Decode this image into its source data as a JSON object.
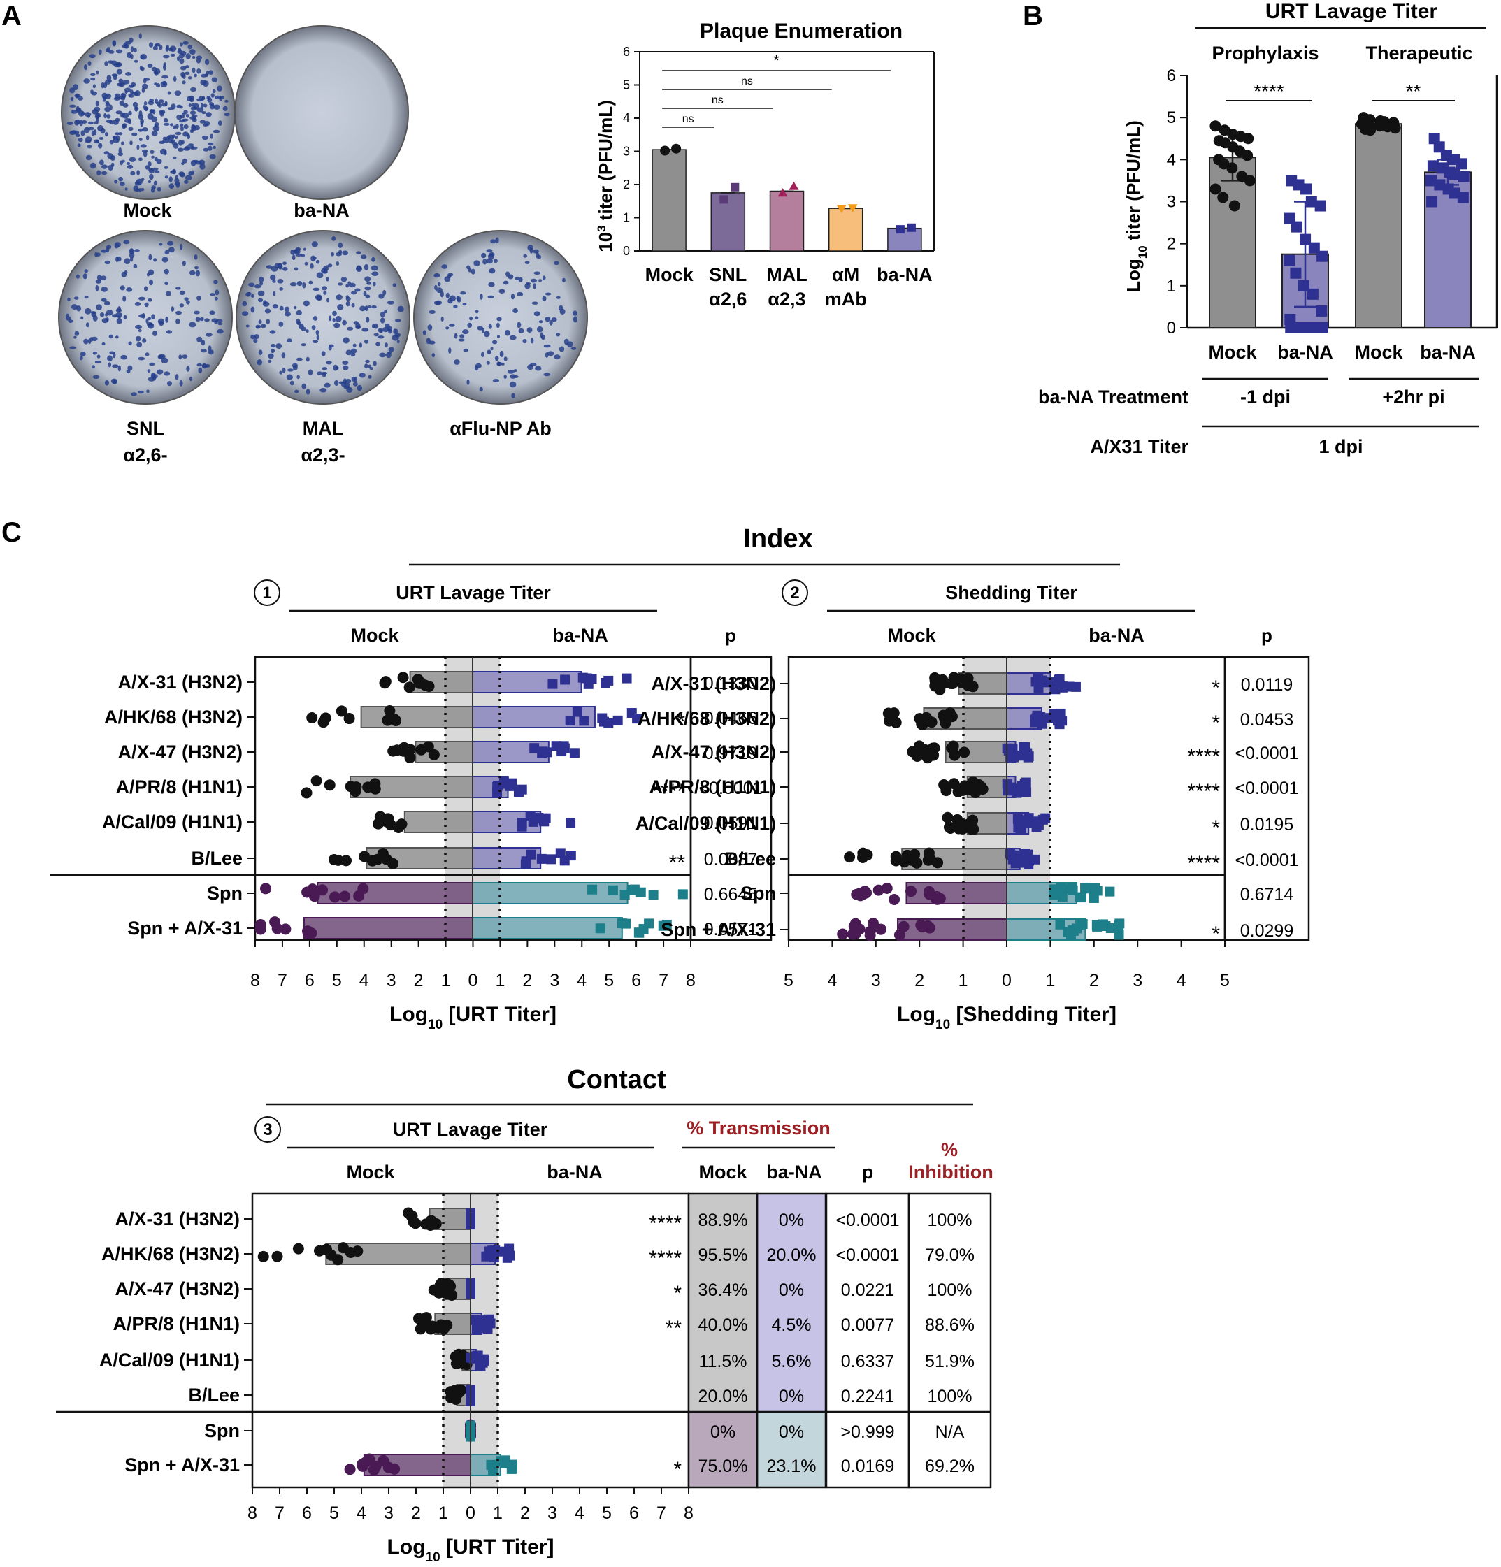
{
  "colors": {
    "mock_bar": "#8f8f8f",
    "bana_bar": "#8a86bd",
    "snl_bar": "#7c6a98",
    "mal_bar": "#b47f9c",
    "am_bar": "#f6be7a",
    "navy": "#2e3192",
    "purple_dark": "#4a1a55",
    "teal": "#1c7f8a",
    "shade": "#d9d9d9",
    "highlight_red": "#9c1f24",
    "mock_tx_fill": "#c8c8c8",
    "bana_tx_fill": "#c7c3e6",
    "spn_mock_tx_fill": "#b9a8bb",
    "spn_bana_tx_fill": "#c3d6dc"
  },
  "panel_letters": {
    "a": "A",
    "b": "B",
    "c": "C"
  },
  "plates": [
    {
      "id": "mock",
      "label": "Mock",
      "label2": "",
      "density": 1.0
    },
    {
      "id": "bana",
      "label": "ba-NA",
      "label2": "",
      "density": 0.0
    },
    {
      "id": "snl",
      "label": "SNL",
      "label2": "α2,6-",
      "density": 0.45
    },
    {
      "id": "mal",
      "label": "MAL",
      "label2": "α2,3-",
      "density": 0.55
    },
    {
      "id": "flunp",
      "label": "αFlu-NP Ab",
      "label2": "",
      "density": 0.35
    }
  ],
  "chart_data": [
    {
      "id": "plaque",
      "type": "bar",
      "title": "Plaque Enumeration",
      "ylabel_base": "10",
      "ylabel_exp": "3",
      "ylabel_rest": " titer (PFU/mL)",
      "ylim": [
        0,
        6
      ],
      "yticks": [
        "0",
        "1",
        "2",
        "3",
        "4",
        "5",
        "6"
      ],
      "categories": [
        {
          "l1": "Mock",
          "l2": "",
          "value": 3.05,
          "points": [
            3.02,
            3.08
          ],
          "color_key": "mock_bar"
        },
        {
          "l1": "SNL",
          "l2": "α2,6",
          "value": 1.75,
          "points": [
            1.55,
            1.92
          ],
          "color_key": "snl_bar"
        },
        {
          "l1": "MAL",
          "l2": "α2,3",
          "value": 1.8,
          "points": [
            1.72,
            1.92
          ],
          "color_key": "mal_bar"
        },
        {
          "l1": "αM",
          "l2": "mAb",
          "value": 1.28,
          "points": [
            1.28,
            1.3
          ],
          "color_key": "am_bar"
        },
        {
          "l1": "ba-NA",
          "l2": "",
          "value": 0.68,
          "points": [
            0.65,
            0.7
          ],
          "color_key": "bana_bar"
        }
      ],
      "brackets": [
        {
          "from": 0,
          "to": 1,
          "label": "ns"
        },
        {
          "from": 0,
          "to": 2,
          "label": "ns"
        },
        {
          "from": 0,
          "to": 3,
          "label": "ns"
        },
        {
          "from": 0,
          "to": 4,
          "label": "*"
        }
      ]
    },
    {
      "id": "urt_b",
      "type": "bar",
      "title": "URT Lavage Titer",
      "ylabel_base": "Log",
      "ylabel_sub": "10",
      "ylabel_rest": " titer (PFU/mL)",
      "ylim": [
        0,
        6
      ],
      "yticks": [
        "0",
        "1",
        "2",
        "3",
        "4",
        "5",
        "6"
      ],
      "groups": [
        {
          "label": "Prophylaxis",
          "treatment": "-1 dpi",
          "sig": "****"
        },
        {
          "label": "Therapeutic",
          "treatment": "+2hr pi",
          "sig": "**"
        }
      ],
      "categories": [
        {
          "label": "Mock",
          "value": 4.05,
          "sd": 0.55,
          "color_key": "mock_bar",
          "marker": "circle",
          "points": [
            4.8,
            4.7,
            4.6,
            4.55,
            4.5,
            4.45,
            4.4,
            4.3,
            4.2,
            4.1,
            4.0,
            3.9,
            3.8,
            3.6,
            3.5,
            3.3,
            3.1,
            2.9
          ]
        },
        {
          "label": "ba-NA",
          "value": 1.75,
          "sd": 1.25,
          "color_key": "bana_bar",
          "marker": "square",
          "points": [
            3.5,
            3.4,
            3.3,
            3.0,
            2.9,
            2.6,
            2.4,
            2.1,
            1.9,
            1.7,
            1.6,
            1.3,
            1.0,
            0.8,
            0.4,
            0.2,
            0,
            0,
            0,
            0,
            0
          ]
        },
        {
          "label": "Mock",
          "value": 4.85,
          "sd": 0.1,
          "color_key": "mock_bar",
          "marker": "circle",
          "points": [
            5.0,
            4.95,
            4.92,
            4.9,
            4.88,
            4.85,
            4.82,
            4.8,
            4.78,
            4.75,
            4.72,
            4.7
          ]
        },
        {
          "label": "ba-NA",
          "value": 3.7,
          "sd": 0.3,
          "color_key": "bana_bar",
          "marker": "square",
          "points": [
            4.5,
            4.3,
            4.1,
            4.0,
            3.9,
            3.85,
            3.8,
            3.7,
            3.65,
            3.6,
            3.5,
            3.4,
            3.3,
            3.2,
            3.1,
            3.0
          ]
        }
      ],
      "treatment_row_label": "ba-NA Treatment",
      "titer_row_label": "A/X31 Titer",
      "titer_value": "1 dpi"
    },
    {
      "id": "index_urt",
      "type": "bar",
      "orientation": "horizontal-butterfly",
      "number": "1",
      "title": "URT Lavage Titer",
      "left_label": "Mock",
      "right_label": "ba-NA",
      "p_header": "p",
      "xlim": [
        0,
        8
      ],
      "xticks": [
        "8",
        "7",
        "6",
        "5",
        "4",
        "3",
        "2",
        "1",
        "0",
        "1",
        "2",
        "3",
        "4",
        "5",
        "6",
        "7",
        "8"
      ],
      "xlabel_base": "Log",
      "xlabel_sub": "10",
      "xlabel_rest": " [URT Titer]",
      "rows": [
        {
          "label": "A/X-31 (H3N2)",
          "mock": 2.3,
          "bana": 4.0,
          "sig": "",
          "p": "0.1330"
        },
        {
          "label": "A/HK/68 (H3N2)",
          "mock": 4.1,
          "bana": 4.5,
          "sig": "*",
          "p": "0.0466"
        },
        {
          "label": "A/X-47 (H3N2)",
          "mock": 2.1,
          "bana": 2.8,
          "sig": "",
          "p": "0.9719"
        },
        {
          "label": "A/PR/8 (H1N1)",
          "mock": 4.5,
          "bana": 1.3,
          "sig": "****",
          "p": "<0.0001"
        },
        {
          "label": "A/Cal/09 (H1N1)",
          "mock": 2.5,
          "bana": 2.5,
          "sig": "",
          "p": "0.0591"
        },
        {
          "label": "B/Lee",
          "mock": 3.9,
          "bana": 2.5,
          "sig": "**",
          "p": "0.0087"
        },
        {
          "label": "Spn",
          "mock": 5.7,
          "bana": 5.7,
          "sig": "",
          "p": "0.6645",
          "spn": true
        },
        {
          "label": "Spn + A/X-31",
          "mock": 6.2,
          "bana": 5.5,
          "sig": "",
          "p": "0.0571",
          "spn": true
        }
      ]
    },
    {
      "id": "index_shed",
      "type": "bar",
      "orientation": "horizontal-butterfly",
      "number": "2",
      "title": "Shedding Titer",
      "left_label": "Mock",
      "right_label": "ba-NA",
      "p_header": "p",
      "xlim": [
        0,
        5
      ],
      "xticks": [
        "5",
        "4",
        "3",
        "2",
        "1",
        "0",
        "1",
        "2",
        "3",
        "4",
        "5"
      ],
      "xlabel_base": "Log",
      "xlabel_sub": "10",
      "xlabel_rest": " [Shedding Titer]",
      "rows": [
        {
          "label": "A/X-31 (H3N2)",
          "mock": 1.1,
          "bana": 1.0,
          "sig": "*",
          "p": "0.0119"
        },
        {
          "label": "A/HK/68 (H3N2)",
          "mock": 1.9,
          "bana": 0.8,
          "sig": "*",
          "p": "0.0453"
        },
        {
          "label": "A/X-47 (H3N2)",
          "mock": 1.4,
          "bana": 0.2,
          "sig": "****",
          "p": "<0.0001"
        },
        {
          "label": "A/PR/8 (H1N1)",
          "mock": 0.9,
          "bana": 0.2,
          "sig": "****",
          "p": "<0.0001"
        },
        {
          "label": "A/Cal/09 (H1N1)",
          "mock": 0.9,
          "bana": 0.5,
          "sig": "*",
          "p": "0.0195"
        },
        {
          "label": "B/Lee",
          "mock": 2.4,
          "bana": 0.3,
          "sig": "****",
          "p": "<0.0001"
        },
        {
          "label": "Spn",
          "mock": 2.3,
          "bana": 1.6,
          "sig": "",
          "p": "0.6714",
          "spn": true
        },
        {
          "label": "Spn + A/X-31",
          "mock": 2.5,
          "bana": 1.8,
          "sig": "*",
          "p": "0.0299",
          "spn": true
        }
      ]
    },
    {
      "id": "contact_urt",
      "type": "bar",
      "orientation": "horizontal-butterfly",
      "number": "3",
      "title": "URT Lavage Titer",
      "left_label": "Mock",
      "right_label": "ba-NA",
      "xlim": [
        0,
        8
      ],
      "xticks": [
        "8",
        "7",
        "6",
        "5",
        "4",
        "3",
        "2",
        "1",
        "0",
        "1",
        "2",
        "3",
        "4",
        "5",
        "6",
        "7",
        "8"
      ],
      "xlabel_base": "Log",
      "xlabel_sub": "10",
      "xlabel_rest": " [URT Titer]",
      "transmission_header": "% Transmission",
      "mock_header": "Mock",
      "bana_header": "ba-NA",
      "p_header": "p",
      "inhibition_header_l1": "%",
      "inhibition_header_l2": "Inhibition",
      "rows": [
        {
          "label": "A/X-31 (H3N2)",
          "mock": 1.5,
          "bana": 0.0,
          "sig": "****",
          "tx_mock": "88.9%",
          "tx_bana": "0%",
          "p": "<0.0001",
          "inhibition": "100%"
        },
        {
          "label": "A/HK/68 (H3N2)",
          "mock": 5.3,
          "bana": 0.9,
          "sig": "****",
          "tx_mock": "95.5%",
          "tx_bana": "20.0%",
          "p": "<0.0001",
          "inhibition": "79.0%"
        },
        {
          "label": "A/X-47 (H3N2)",
          "mock": 0.9,
          "bana": 0.0,
          "sig": "*",
          "tx_mock": "36.4%",
          "tx_bana": "0%",
          "p": "0.0221",
          "inhibition": "100%"
        },
        {
          "label": "A/PR/8 (H1N1)",
          "mock": 1.3,
          "bana": 0.4,
          "sig": "**",
          "tx_mock": "40.0%",
          "tx_bana": "4.5%",
          "p": "0.0077",
          "inhibition": "88.6%"
        },
        {
          "label": "A/Cal/09 (H1N1)",
          "mock": 0.3,
          "bana": 0.2,
          "sig": "",
          "tx_mock": "11.5%",
          "tx_bana": "5.6%",
          "p": "0.6337",
          "inhibition": "51.9%"
        },
        {
          "label": "B/Lee",
          "mock": 0.5,
          "bana": 0.0,
          "sig": "",
          "tx_mock": "20.0%",
          "tx_bana": "0%",
          "p": "0.2241",
          "inhibition": "100%"
        },
        {
          "label": "Spn",
          "mock": 0.0,
          "bana": 0.0,
          "sig": "",
          "tx_mock": "0%",
          "tx_bana": "0%",
          "p": ">0.999",
          "inhibition": "N/A",
          "spn": true
        },
        {
          "label": "Spn + A/X-31",
          "mock": 3.9,
          "bana": 1.1,
          "sig": "*",
          "tx_mock": "75.0%",
          "tx_bana": "23.1%",
          "p": "0.0169",
          "inhibition": "69.2%",
          "spn": true
        }
      ]
    }
  ],
  "index_title": "Index",
  "contact_title": "Contact"
}
